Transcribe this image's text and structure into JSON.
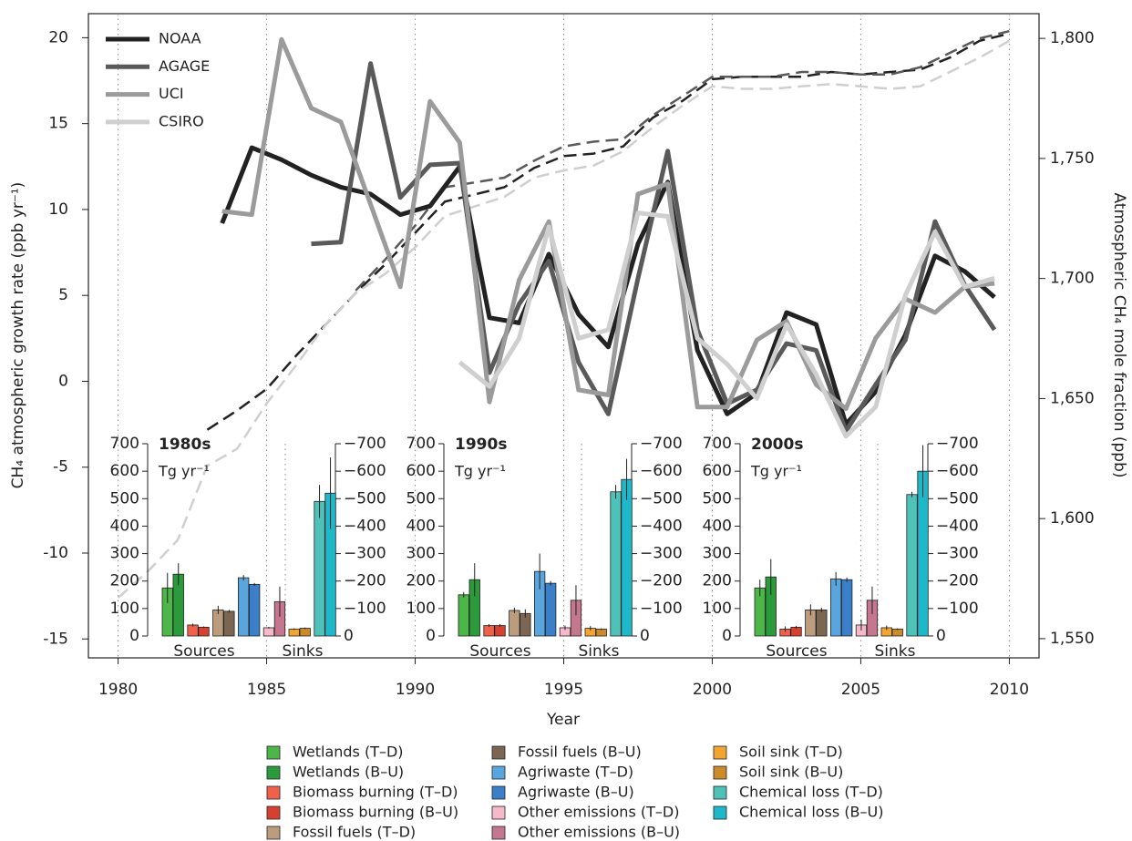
{
  "chart_data": [
    {
      "type": "line",
      "xlabel": "Year",
      "ylabel": "CH₄ atmospheric growth rate (ppb yr⁻¹)",
      "y2label": "Atmospheric CH₄ mole fraction (ppb)",
      "xlim": [
        1979,
        2011
      ],
      "xticks": [
        1980,
        1985,
        1990,
        1995,
        2000,
        2005,
        2010
      ],
      "grid": true,
      "ylim": [
        -16.1,
        21.4
      ],
      "yticks": [
        -15,
        -10,
        -5,
        0,
        5,
        10,
        15,
        20
      ],
      "y2lim": [
        1542,
        1810.3
      ],
      "y2ticks": [
        {
          "value": 1550,
          "label": "1,550"
        },
        {
          "value": 1600,
          "label": "1,600"
        },
        {
          "value": 1650,
          "label": "1,650"
        },
        {
          "value": 1700,
          "label": "1,700"
        },
        {
          "value": 1750,
          "label": "1,750"
        },
        {
          "value": 1800,
          "label": "1,800"
        }
      ],
      "legend": "upper left",
      "series": [
        {
          "name": "NOAA",
          "color": "#222222",
          "x": [
            1983.5,
            1984.5,
            1985.5,
            1986.5,
            1987.5,
            1988.5,
            1989.5,
            1990.5,
            1991.5,
            1992.5,
            1993.5,
            1994.5,
            1995.5,
            1996.5,
            1997.5,
            1998.5,
            1999.5,
            2000.5,
            2001.5,
            2002.5,
            2003.5,
            2004.5,
            2005.5,
            2006.5,
            2007.5,
            2008.5,
            2009.5
          ],
          "values": [
            9.2,
            13.6,
            12.9,
            12.0,
            11.3,
            10.9,
            9.7,
            10.2,
            12.5,
            3.7,
            3.4,
            7.4,
            3.9,
            2.0,
            8.0,
            11.6,
            1.8,
            -1.9,
            -0.7,
            4.0,
            3.3,
            -2.5,
            -0.6,
            2.7,
            7.3,
            6.4,
            4.9
          ],
          "mole_fraction_x": [
            1983,
            1984,
            1985,
            1986,
            1987,
            1988,
            1989,
            1990,
            1991,
            1992,
            1993,
            1994,
            1995,
            1996,
            1997,
            1998,
            1999,
            2000,
            2001,
            2002,
            2003,
            2004,
            2005,
            2006,
            2007,
            2008,
            2009,
            2010
          ],
          "mole_fraction": [
            1637,
            1645,
            1654,
            1668,
            1681,
            1694,
            1706,
            1719,
            1732,
            1735,
            1738,
            1746,
            1751,
            1752,
            1755,
            1767,
            1774,
            1783,
            1784,
            1784,
            1784,
            1786,
            1785,
            1786,
            1787,
            1792,
            1799,
            1802
          ]
        },
        {
          "name": "AGAGE",
          "color": "#5a5a5a",
          "x": [
            1986.5,
            1987.5,
            1988.5,
            1989.5,
            1990.5,
            1991.5,
            1992.5,
            1993.5,
            1994.5,
            1995.5,
            1996.5,
            1997.5,
            1998.5,
            1999.5,
            2000.5,
            2001.5,
            2002.5,
            2003.5,
            2004.5,
            2005.5,
            2006.5,
            2007.5,
            2008.5,
            2009.5
          ],
          "values": [
            8.0,
            8.1,
            18.5,
            10.7,
            12.6,
            12.7,
            0.5,
            4.5,
            7.0,
            1.1,
            -1.9,
            6.0,
            13.4,
            3.0,
            -1.3,
            -0.5,
            2.2,
            1.8,
            -2.9,
            -0.2,
            2.4,
            9.3,
            5.6,
            3.0
          ],
          "mole_fraction_x": [
            1988,
            1989,
            1990,
            1991,
            1992,
            1993,
            1994,
            1995,
            1996,
            1997,
            1998,
            1999,
            2000,
            2001,
            2002,
            2003,
            2004,
            2005,
            2006,
            2007,
            2008,
            2009,
            2010
          ],
          "mole_fraction": [
            1695,
            1708,
            1722,
            1738,
            1740,
            1742,
            1749,
            1755,
            1757,
            1758,
            1768,
            1776,
            1784,
            1784,
            1784,
            1786,
            1786,
            1785,
            1785,
            1788,
            1794,
            1800,
            1803
          ]
        },
        {
          "name": "UCI",
          "color": "#9b9b9b",
          "x": [
            1983.5,
            1984.5,
            1985.5,
            1986.5,
            1987.5,
            1988.5,
            1989.5,
            1990.5,
            1991.5,
            1992.5,
            1993.5,
            1994.5,
            1995.5,
            1996.5,
            1997.5,
            1998.5,
            1999.5,
            2000.5,
            2001.5,
            2002.5,
            2003.5,
            2004.5,
            2005.5,
            2006.5,
            2007.5,
            2008.5,
            2009.5
          ],
          "values": [
            9.9,
            9.7,
            19.9,
            15.9,
            15.1,
            10.3,
            5.5,
            16.3,
            13.9,
            -1.2,
            5.9,
            9.3,
            -0.5,
            -0.8,
            10.9,
            11.5,
            -1.5,
            -1.5,
            2.4,
            3.5,
            -0.2,
            -1.6,
            2.5,
            4.8,
            4.0,
            5.5,
            5.7
          ]
        },
        {
          "name": "CSIRO",
          "color": "#cfcfcf",
          "x": [
            1991.5,
            1992.5,
            1993.5,
            1994.5,
            1995.5,
            1996.5,
            1997.5,
            1998.5,
            1999.5,
            2000.5,
            2001.5,
            2002.5,
            2003.5,
            2004.5,
            2005.5,
            2006.5,
            2007.5,
            2008.5,
            2009.5
          ],
          "values": [
            1.1,
            -0.3,
            2.5,
            9.0,
            2.5,
            3.0,
            9.8,
            9.6,
            2.5,
            1.0,
            -1.0,
            3.3,
            0.4,
            -3.2,
            -1.5,
            5.0,
            8.7,
            5.5,
            6.0
          ],
          "mole_fraction_x": [
            1980,
            1981,
            1982,
            1983,
            1984,
            1985,
            1986,
            1987,
            1988,
            1989,
            1990,
            1991,
            1992,
            1993,
            1994,
            1995,
            1996,
            1997,
            1998,
            1999,
            2000,
            2001,
            2002,
            2003,
            2004,
            2005,
            2006,
            2007,
            2008,
            2009,
            2010
          ],
          "mole_fraction": [
            1567,
            1578,
            1591,
            1622,
            1629,
            1648,
            1664,
            1681,
            1694,
            1702,
            1713,
            1726,
            1730,
            1734,
            1742,
            1745,
            1747,
            1753,
            1763,
            1772,
            1780,
            1779,
            1779,
            1780,
            1781,
            1780,
            1779,
            1780,
            1786,
            1792,
            1799
          ]
        }
      ]
    },
    {
      "type": "bar",
      "unit": "Tg yr⁻¹",
      "groups": [
        "Sources",
        "Sinks"
      ],
      "ylim": [
        0,
        700
      ],
      "yticks": [
        0,
        100,
        200,
        300,
        400,
        500,
        600,
        700
      ],
      "y2lim": [
        0,
        -700
      ],
      "y2ticks": [
        0,
        {
          "value": -100,
          "label": "−100"
        },
        {
          "value": -200,
          "label": "−200"
        },
        {
          "value": -300,
          "label": "−300"
        },
        {
          "value": -400,
          "label": "−400"
        },
        {
          "value": -500,
          "label": "−500"
        },
        {
          "value": -600,
          "label": "−600"
        },
        {
          "value": -700,
          "label": "−700"
        }
      ],
      "categories": [
        "Wetlands (T–D)",
        "Wetlands (B–U)",
        "Biomass burning (T–D)",
        "Biomass burning (B–U)",
        "Fossil fuels (T–D)",
        "Fossil fuels (B–U)",
        "Agriwaste (T–D)",
        "Agriwaste (B–U)",
        "Other emissions (T–D)",
        "Other emissions (B–U)",
        "Soil sink (T–D)",
        "Soil sink (B–U)",
        "Chemical loss (T–D)",
        "Chemical loss (B–U)"
      ],
      "colors": [
        "#4cb648",
        "#2a9a3a",
        "#f0604a",
        "#d5402f",
        "#bb9c7c",
        "#7a6652",
        "#5ba5de",
        "#3a7fc8",
        "#f6b9c9",
        "#c4778f",
        "#f2a531",
        "#cc8a2a",
        "#4ec2b9",
        "#1db8c9"
      ],
      "axis": [
        "y",
        "y",
        "y",
        "y",
        "y",
        "y",
        "y",
        "y",
        "y",
        "y",
        "y2",
        "y2",
        "y2",
        "y2"
      ],
      "panels": [
        {
          "title": "1980s",
          "values": [
            175,
            225,
            40,
            32,
            95,
            90,
            212,
            188,
            30,
            125,
            -25,
            -28,
            -490,
            -520
          ],
          "errors": [
            55,
            40,
            5,
            3,
            15,
            5,
            10,
            5,
            3,
            55,
            3,
            3,
            60,
            130
          ]
        },
        {
          "title": "1990s",
          "values": [
            150,
            205,
            38,
            38,
            93,
            82,
            235,
            192,
            30,
            130,
            -28,
            -25,
            -525,
            -570
          ],
          "errors": [
            10,
            60,
            5,
            5,
            10,
            15,
            65,
            8,
            8,
            55,
            8,
            3,
            25,
            75
          ]
        },
        {
          "title": "2000s",
          "values": [
            175,
            215,
            25,
            32,
            95,
            95,
            208,
            205,
            40,
            130,
            -30,
            -25,
            -515,
            -600
          ],
          "errors": [
            30,
            65,
            10,
            5,
            20,
            8,
            25,
            8,
            20,
            50,
            8,
            3,
            10,
            95
          ]
        }
      ]
    }
  ]
}
